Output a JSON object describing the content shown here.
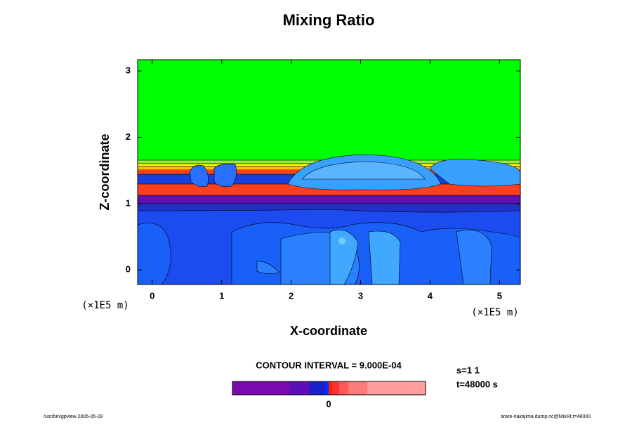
{
  "chart_data": {
    "type": "contour",
    "title": "Mixing Ratio",
    "x_label": "X-coordinate",
    "y_label": "Z-coordinate",
    "x_unit_label": "(×1E5 m)",
    "y_unit_label": "(×1E5 m)",
    "xlim": [
      -0.21,
      5.3
    ],
    "ylim": [
      -0.22,
      3.17
    ],
    "xticks": [
      0,
      1,
      2,
      3,
      4,
      5
    ],
    "yticks": [
      0,
      1,
      2,
      3
    ],
    "contour_interval_text": "CONTOUR INTERVAL = 9.000E-04",
    "colorbar_ticks": [
      0
    ],
    "info_lines": [
      "s=1 1",
      "t=48000 s"
    ],
    "footer_left": "/usr/bin/gpview 2005-05-28",
    "footer_right": "arare-nakajima dump.nc@MixRt,t=48000"
  }
}
